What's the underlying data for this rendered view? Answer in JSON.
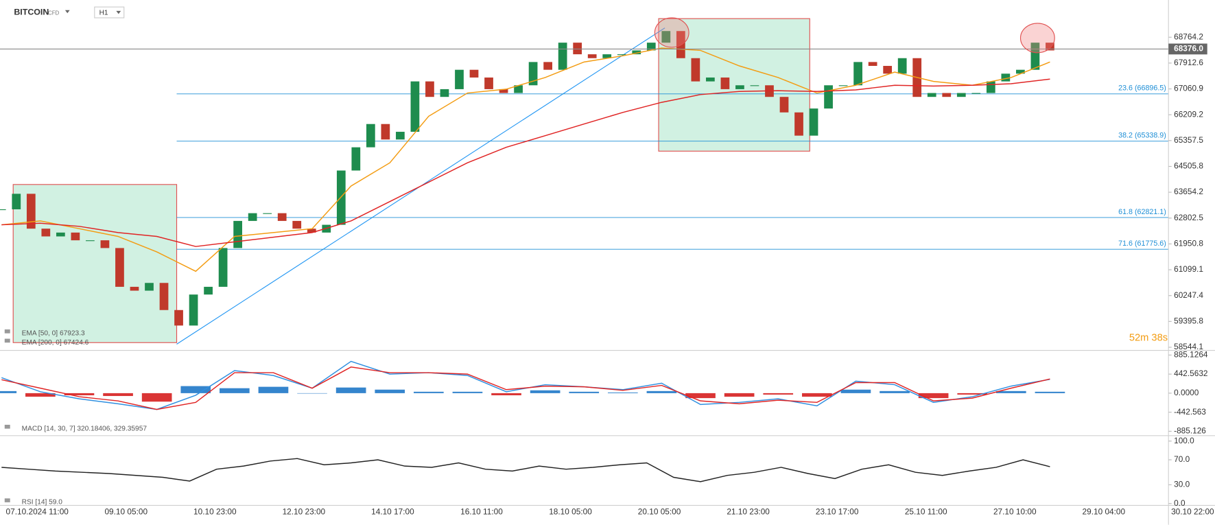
{
  "chart_data": [
    {
      "type": "candlestick",
      "title": "BITCOIN",
      "subtitle": "CFD",
      "timeframe": "H1",
      "timer": "52m 38s",
      "ylim": [
        58442,
        69940
      ],
      "yticks": [
        68764.2,
        67912.6,
        67060.9,
        66209.2,
        65357.5,
        64505.8,
        63654.2,
        62802.5,
        61950.8,
        61099.1,
        60247.4,
        59395.8,
        58544.1
      ],
      "current_price": {
        "value": 68376.0,
        "label": "68376.0"
      },
      "x_labels": [
        "07.10.2024 11:00",
        "09.10 05:00",
        "10.10 23:00",
        "12.10 23:00",
        "14.10 17:00",
        "16.10 11:00",
        "18.10 05:00",
        "20.10 05:00",
        "21.10 23:00",
        "23.10 17:00",
        "25.10 11:00",
        "27.10 10:00",
        "29.10 04:00",
        "30.10 22:00"
      ],
      "up_color": "#1e8c4e",
      "down_color": "#c0392b",
      "series": [
        {
          "values": [
            63092,
            63603,
            62454,
            62198,
            62325,
            62070,
            62070,
            61815,
            60537,
            60410,
            60665,
            59771,
            59260,
            60282,
            60537,
            61815,
            62709,
            62964,
            62964,
            62709,
            62454,
            62325,
            62581,
            64370,
            65136,
            65903,
            65392,
            65647,
            67308,
            66797,
            67052,
            67691,
            67436,
            67052,
            66925,
            67180,
            67947,
            67691,
            68585,
            68202,
            68074,
            68202,
            68202,
            68330,
            68585,
            68968,
            68074,
            67308,
            67436,
            67052,
            67180,
            67180,
            66797,
            66286,
            65520,
            66414,
            67180,
            67180,
            67947,
            67819,
            67563,
            68074,
            66797,
            66925,
            66797,
            66925,
            66925,
            67308,
            67563,
            67691,
            68585,
            68330
          ]
        },
        {
          "name": "EMA [50, 0] 67923.3",
          "color": "#f39c12",
          "values": [
            62581,
            62709,
            62454,
            62198,
            61687,
            61048,
            62198,
            62325,
            62454,
            63858,
            64625,
            66158,
            66925,
            67052,
            67436,
            67947,
            68151,
            68406,
            68330,
            67819,
            67436,
            66925,
            67180,
            67614,
            67308,
            67180,
            67436,
            67947
          ]
        },
        {
          "name": "EMA [200, 0] 67424.6",
          "color": "#e02424",
          "values": [
            62581,
            62632,
            62530,
            62325,
            62198,
            61866,
            62019,
            62172,
            62325,
            62709,
            63347,
            63986,
            64625,
            65136,
            65520,
            65903,
            66286,
            66618,
            66874,
            66976,
            67001,
            66976,
            67027,
            67180,
            67155,
            67180,
            67231,
            67385
          ]
        }
      ],
      "levels": [
        {
          "value": 66896.5,
          "label": "23.6 (66896.5)"
        },
        {
          "value": 65338.9,
          "label": "38.2 (65338.9)"
        },
        {
          "value": 62821.1,
          "label": "61.8 (62821.1)"
        },
        {
          "value": 61775.6,
          "label": "71.6 (61775.6)"
        }
      ],
      "level_color": "#1f8fd6"
    },
    {
      "type": "macd",
      "legend": "MACD [14, 30, 7] 320.18406, 329.35957",
      "ylim": [
        -950,
        940
      ],
      "yticks": [
        885.1264,
        442.5632,
        {
          "value": 0,
          "label": "0.0000"
        },
        -442.563,
        -885.126
      ],
      "histogram": {
        "up_color": "#1f78c8",
        "down_color": "#d61f1f",
        "values": [
          48,
          -82,
          -49,
          -66,
          -197,
          164,
          115,
          148,
          0,
          131,
          82,
          33,
          33,
          -49,
          66,
          33,
          16,
          49,
          -115,
          -82,
          -33,
          -82,
          82,
          49,
          -115,
          -33,
          49,
          33
        ]
      },
      "series": [
        {
          "color": "#2f8fe0",
          "values": [
            360,
            33,
            -131,
            -246,
            -377,
            -49,
            525,
            410,
            115,
            738,
            443,
            475,
            410,
            33,
            197,
            148,
            82,
            230,
            -262,
            -213,
            -131,
            -295,
            279,
            197,
            -213,
            -82,
            164,
            320
          ]
        },
        {
          "color": "#e02424",
          "values": [
            312,
            115,
            -82,
            -180,
            -377,
            -213,
            475,
            475,
            115,
            607,
            475,
            475,
            443,
            82,
            164,
            148,
            66,
            180,
            -180,
            -246,
            -164,
            -213,
            246,
            246,
            -180,
            -115,
            115,
            329
          ]
        }
      ]
    },
    {
      "type": "rsi",
      "legend": "RSI [14] 59.0",
      "ylim": [
        -3,
        105
      ],
      "yticks": [
        {
          "value": 100,
          "label": "100.0"
        },
        {
          "value": 70,
          "label": "70.0"
        },
        {
          "value": 30,
          "label": "30.0"
        },
        {
          "value": 0,
          "label": "0.0"
        }
      ],
      "series": [
        {
          "color": "#222222",
          "values": [
            58,
            55,
            52,
            50,
            48,
            45,
            42,
            36,
            55,
            60,
            68,
            72,
            62,
            65,
            70,
            60,
            58,
            65,
            55,
            52,
            60,
            55,
            58,
            62,
            65,
            42,
            35,
            45,
            50,
            58,
            48,
            40,
            55,
            62,
            50,
            45,
            52,
            58,
            70,
            59
          ]
        }
      ]
    }
  ]
}
